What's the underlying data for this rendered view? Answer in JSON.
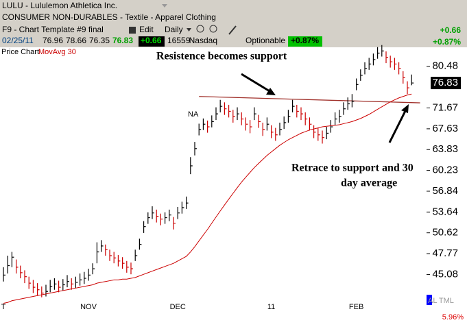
{
  "header": {
    "symbol": "LULU - Lululemon Athletica Inc.",
    "industry": "CONSUMER NON-DURABLES - Textile - Apparel Clothing",
    "template": "F9 - Chart Template #9 final",
    "edit": "Edit",
    "period": "Daily",
    "exchange": "Nasdaq",
    "optionable": "Optionable",
    "quote": {
      "date": "02/25/11",
      "open": "76.96",
      "high": "78.66",
      "low": "76.35",
      "close": "76.83",
      "change": "+0.66",
      "volume": "16559",
      "change_pct": "+0.87%"
    },
    "summary": {
      "change": "+0.66",
      "change_pct": "+0.87%"
    }
  },
  "chart_data": {
    "type": "ohlc",
    "log_scale": true,
    "categories": [
      "T",
      null,
      null,
      null,
      null,
      null,
      null,
      null,
      null,
      null,
      null,
      null,
      null,
      null,
      null,
      null,
      null,
      null,
      null,
      null,
      "NOV",
      null,
      null,
      null,
      null,
      null,
      null,
      null,
      null,
      null,
      null,
      null,
      null,
      null,
      null,
      null,
      null,
      null,
      null,
      null,
      null,
      "DEC",
      null,
      null,
      null,
      null,
      null,
      null,
      null,
      null,
      null,
      null,
      null,
      null,
      null,
      null,
      null,
      null,
      null,
      null,
      null,
      null,
      null,
      "11",
      null,
      null,
      null,
      null,
      null,
      null,
      null,
      null,
      null,
      null,
      null,
      null,
      null,
      null,
      null,
      null,
      null,
      null,
      null,
      "FEB",
      null,
      null,
      null,
      null,
      null,
      null,
      null,
      null,
      null,
      null,
      null,
      null,
      null
    ],
    "series": [
      {
        "name": "Price Chart",
        "color": "#000000",
        "down_color": "#cc0000",
        "high": [
          46.0,
          47.5,
          48.0,
          47.0,
          46.2,
          45.6,
          44.8,
          44.4,
          44.0,
          43.6,
          43.8,
          44.4,
          44.6,
          44.3,
          44.5,
          45.0,
          44.6,
          44.8,
          45.2,
          45.4,
          45.8,
          46.5,
          49.3,
          49.6,
          49.0,
          48.3,
          48.0,
          47.6,
          47.3,
          46.8,
          46.6,
          48.3,
          49.8,
          52.3,
          53.6,
          54.5,
          54.0,
          53.4,
          53.6,
          54.0,
          52.9,
          54.4,
          55.2,
          56.0,
          62.5,
          65.2,
          68.6,
          69.6,
          69.2,
          70.2,
          71.8,
          73.3,
          72.8,
          72.3,
          71.3,
          71.8,
          70.8,
          69.8,
          69.3,
          71.8,
          70.3,
          68.8,
          69.8,
          68.3,
          67.8,
          68.8,
          70.0,
          71.3,
          73.3,
          72.3,
          71.8,
          70.8,
          69.8,
          68.3,
          67.8,
          67.3,
          68.0,
          69.3,
          70.8,
          71.3,
          72.8,
          73.8,
          74.5,
          77.8,
          79.8,
          81.4,
          82.4,
          83.4,
          84.9,
          85.4,
          83.9,
          82.9,
          82.4,
          81.4,
          79.4,
          77.2,
          78.66
        ],
        "low": [
          44.2,
          45.2,
          46.0,
          45.2,
          44.6,
          44.0,
          43.3,
          42.8,
          42.5,
          42.3,
          42.4,
          42.9,
          43.2,
          42.9,
          43.1,
          43.5,
          43.2,
          43.4,
          43.7,
          43.9,
          44.3,
          45.1,
          46.5,
          48.0,
          47.5,
          46.8,
          46.5,
          46.1,
          45.8,
          45.3,
          45.1,
          46.8,
          48.3,
          50.6,
          51.9,
          52.6,
          52.1,
          51.7,
          51.9,
          52.3,
          51.1,
          52.6,
          53.4,
          54.1,
          59.6,
          62.8,
          66.4,
          67.4,
          66.9,
          67.9,
          69.3,
          70.8,
          70.3,
          69.8,
          68.8,
          69.3,
          68.3,
          67.3,
          66.8,
          69.3,
          67.8,
          66.3,
          67.3,
          65.9,
          65.4,
          66.4,
          67.6,
          68.8,
          70.8,
          69.8,
          69.3,
          68.3,
          67.3,
          65.9,
          65.4,
          64.9,
          65.7,
          66.9,
          68.3,
          68.8,
          70.3,
          71.3,
          71.8,
          75.3,
          77.3,
          78.7,
          79.7,
          80.7,
          82.2,
          82.7,
          81.2,
          80.2,
          79.7,
          78.7,
          76.7,
          74.5,
          76.35
        ],
        "close": [
          45.0,
          46.2,
          47.3,
          46.0,
          45.3,
          44.8,
          44.0,
          43.5,
          43.2,
          42.8,
          43.0,
          43.6,
          43.9,
          43.5,
          43.8,
          44.2,
          43.9,
          44.1,
          44.4,
          44.6,
          45.0,
          45.8,
          48.0,
          48.8,
          48.3,
          47.5,
          47.2,
          46.8,
          46.5,
          46.0,
          45.8,
          47.5,
          49.0,
          51.5,
          52.8,
          53.5,
          53.0,
          52.6,
          52.8,
          53.2,
          52.0,
          53.5,
          54.3,
          55.0,
          61.0,
          64.0,
          67.5,
          68.5,
          68.0,
          69.0,
          70.5,
          72.0,
          71.5,
          71.0,
          70.0,
          70.5,
          69.5,
          68.5,
          68.0,
          70.5,
          69.0,
          67.5,
          68.5,
          67.0,
          66.5,
          67.5,
          68.8,
          70.0,
          72.0,
          71.0,
          70.5,
          69.5,
          68.5,
          67.0,
          66.5,
          66.0,
          66.8,
          68.0,
          69.5,
          70.0,
          71.5,
          72.5,
          73.0,
          76.5,
          78.5,
          80.0,
          81.0,
          82.0,
          83.5,
          84.0,
          82.5,
          81.5,
          81.0,
          80.0,
          78.0,
          75.8,
          76.83
        ]
      },
      {
        "name": "MovAvg 30",
        "color": "#cc0000",
        "values": [
          41.6,
          41.7,
          41.9,
          42.0,
          42.1,
          42.2,
          42.3,
          42.4,
          42.5,
          42.6,
          42.7,
          42.8,
          42.9,
          43.0,
          43.1,
          43.2,
          43.3,
          43.4,
          43.5,
          43.6,
          43.7,
          43.8,
          44.0,
          44.1,
          44.2,
          44.3,
          44.4,
          44.4,
          44.5,
          44.5,
          44.6,
          44.7,
          44.9,
          45.1,
          45.3,
          45.5,
          45.7,
          45.9,
          46.1,
          46.3,
          46.5,
          46.8,
          47.1,
          47.4,
          48.0,
          48.7,
          49.5,
          50.3,
          51.1,
          52.0,
          52.9,
          53.8,
          54.7,
          55.6,
          56.5,
          57.4,
          58.3,
          59.1,
          59.9,
          60.7,
          61.4,
          62.1,
          62.8,
          63.4,
          64.0,
          64.6,
          65.1,
          65.6,
          66.0,
          66.4,
          66.8,
          67.1,
          67.4,
          67.6,
          67.8,
          68.0,
          68.1,
          68.2,
          68.3,
          68.4,
          68.6,
          68.8,
          69.0,
          69.3,
          69.6,
          70.0,
          70.4,
          70.9,
          71.4,
          71.9,
          72.4,
          72.9,
          73.3,
          73.7,
          74.0,
          74.3,
          74.5
        ]
      }
    ],
    "trendline": {
      "color": "#a0302a",
      "x": [
        46,
        98
      ],
      "values": [
        74.0,
        72.7
      ]
    },
    "ylim": [
      42.2,
      84.7
    ],
    "yticks": [
      80.48,
      71.67,
      67.63,
      63.83,
      60.23,
      56.84,
      53.64,
      50.62,
      47.77,
      45.08
    ],
    "last_price": 76.83,
    "annotations": [
      {
        "text": "Resistence becomes support"
      },
      {
        "lines": [
          "Retrace to support and 30",
          "day average"
        ]
      },
      {
        "text": "NA"
      }
    ],
    "scale_text": "AL TML",
    "scale_step": "5.96%"
  }
}
